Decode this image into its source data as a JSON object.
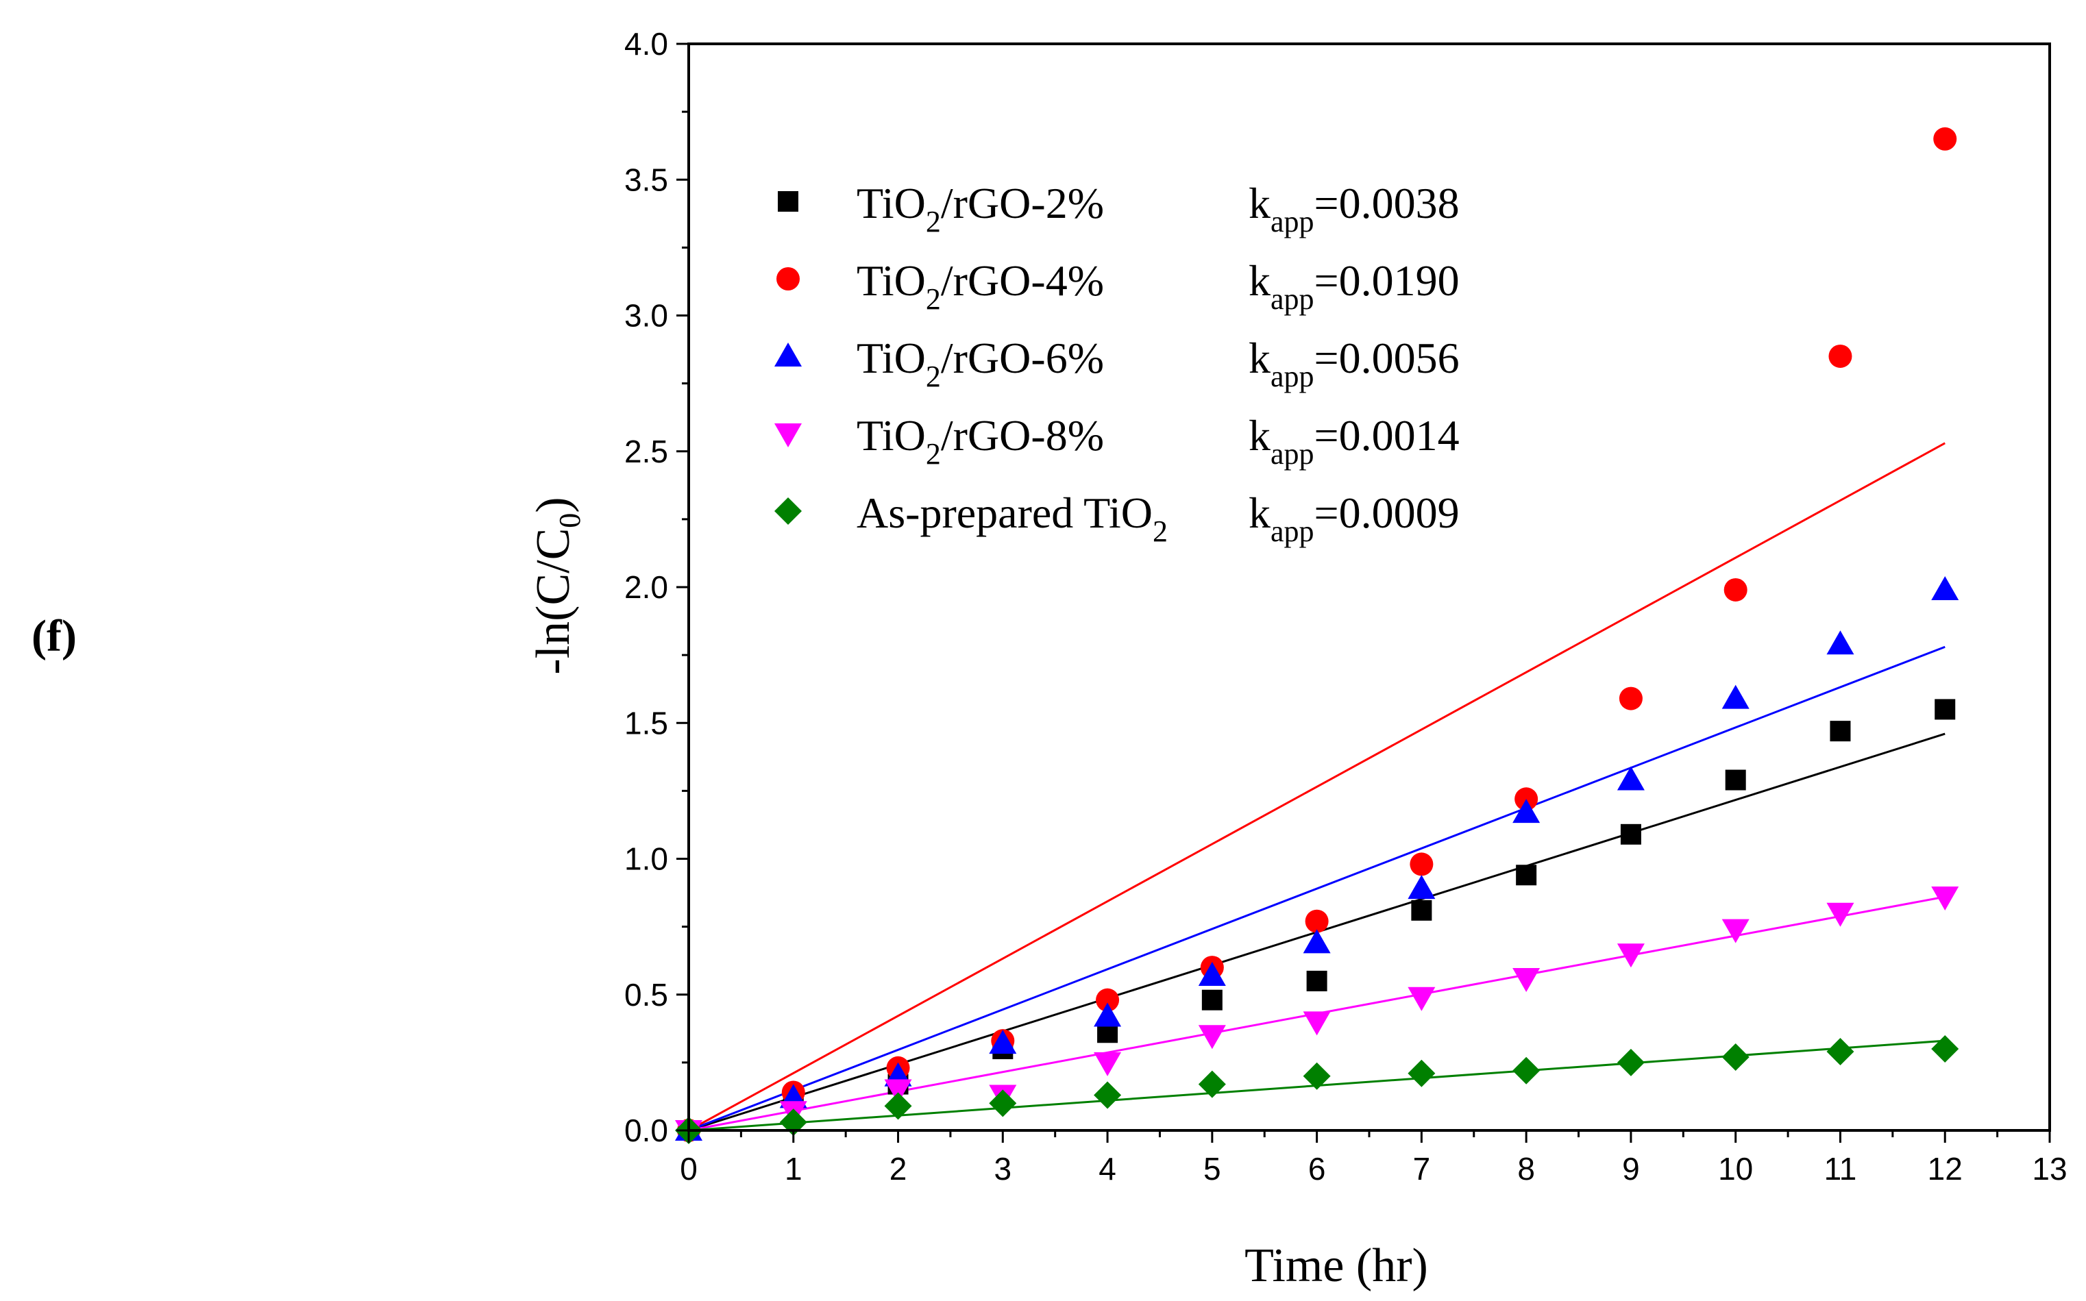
{
  "panel_label": "(f)",
  "chart_data": {
    "type": "scatter",
    "xlabel": "Time (hr)",
    "ylabel": "-ln(C/C0)",
    "ylabel_parts": {
      "main": "-ln(C/C",
      "sub": "0",
      "close": ")"
    },
    "xlim": [
      0,
      13
    ],
    "ylim": [
      0,
      4.0
    ],
    "xticks": [
      0,
      1,
      2,
      3,
      4,
      5,
      6,
      7,
      8,
      9,
      10,
      11,
      12,
      13
    ],
    "yticks": [
      0.0,
      0.5,
      1.0,
      1.5,
      2.0,
      2.5,
      3.0,
      3.5,
      4.0
    ],
    "ytick_labels": [
      "0.0",
      "0.5",
      "1.0",
      "1.5",
      "2.0",
      "2.5",
      "3.0",
      "3.5",
      "4.0"
    ],
    "grid": false,
    "legend_position": "top-left",
    "k_label": {
      "main": "k",
      "sub": "app"
    },
    "series": [
      {
        "name": "TiO2/rGO-2%",
        "name_parts": {
          "pre": "TiO",
          "sub": "2",
          "post": "/rGO-2%"
        },
        "k_value": "=0.0038",
        "marker": "square",
        "color": "#000000",
        "x": [
          0,
          1,
          2,
          3,
          4,
          5,
          6,
          7,
          8,
          9,
          10,
          11,
          12
        ],
        "y": [
          0,
          0.12,
          0.17,
          0.3,
          0.36,
          0.48,
          0.55,
          0.81,
          0.94,
          1.09,
          1.29,
          1.47,
          1.55
        ],
        "fit": {
          "x": [
            0,
            12
          ],
          "y": [
            0,
            1.46
          ]
        }
      },
      {
        "name": "TiO2/rGO-4%",
        "name_parts": {
          "pre": "TiO",
          "sub": "2",
          "post": "/rGO-4%"
        },
        "k_value": "=0.0190",
        "marker": "circle",
        "color": "#ff0000",
        "x": [
          0,
          1,
          2,
          3,
          4,
          5,
          6,
          7,
          8,
          9,
          10,
          11,
          12
        ],
        "y": [
          0,
          0.14,
          0.23,
          0.33,
          0.48,
          0.6,
          0.77,
          0.98,
          1.22,
          1.59,
          1.99,
          2.85,
          3.65
        ],
        "fit": {
          "x": [
            0,
            12
          ],
          "y": [
            0,
            2.53
          ]
        }
      },
      {
        "name": "TiO2/rGO-6%",
        "name_parts": {
          "pre": "TiO",
          "sub": "2",
          "post": "/rGO-6%"
        },
        "k_value": "=0.0056",
        "marker": "triangle-up",
        "color": "#0000ff",
        "x": [
          0,
          1,
          2,
          3,
          4,
          5,
          6,
          7,
          8,
          9,
          10,
          11,
          12
        ],
        "y": [
          0,
          0.12,
          0.2,
          0.32,
          0.42,
          0.57,
          0.69,
          0.89,
          1.17,
          1.29,
          1.59,
          1.79,
          1.99
        ],
        "fit": {
          "x": [
            0,
            12
          ],
          "y": [
            0,
            1.78
          ]
        }
      },
      {
        "name": "TiO2/rGO-8%",
        "name_parts": {
          "pre": "TiO",
          "sub": "2",
          "post": "/rGO-8%"
        },
        "k_value": "=0.0014",
        "marker": "triangle-down",
        "color": "#ff00ff",
        "x": [
          0,
          1,
          2,
          3,
          4,
          5,
          6,
          7,
          8,
          9,
          10,
          11,
          12
        ],
        "y": [
          0,
          0.07,
          0.15,
          0.13,
          0.25,
          0.35,
          0.4,
          0.49,
          0.56,
          0.65,
          0.74,
          0.8,
          0.86
        ],
        "fit": {
          "x": [
            0,
            12
          ],
          "y": [
            0,
            0.86
          ]
        }
      },
      {
        "name": "As-prepared TiO2",
        "name_parts": {
          "pre": "As-prepared TiO",
          "sub": "2",
          "post": ""
        },
        "k_value": "=0.0009",
        "marker": "diamond",
        "color": "#008000",
        "x": [
          0,
          1,
          2,
          3,
          4,
          5,
          6,
          7,
          8,
          9,
          10,
          11,
          12
        ],
        "y": [
          0,
          0.03,
          0.09,
          0.1,
          0.13,
          0.17,
          0.2,
          0.21,
          0.22,
          0.25,
          0.27,
          0.29,
          0.3
        ],
        "fit": {
          "x": [
            0,
            12
          ],
          "y": [
            0,
            0.33
          ]
        }
      }
    ]
  }
}
